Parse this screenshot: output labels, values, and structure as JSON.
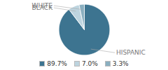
{
  "chart_data": {
    "type": "pie",
    "categories": [
      "HISPANIC",
      "BLACK",
      "WHITE"
    ],
    "values": [
      89.7,
      7.0,
      3.3
    ],
    "value_labels": [
      "89.7%",
      "7.0%",
      "3.3%"
    ],
    "colors": [
      "#3d7490",
      "#bdd4df",
      "#8aafc0"
    ],
    "legend": "bottom"
  }
}
